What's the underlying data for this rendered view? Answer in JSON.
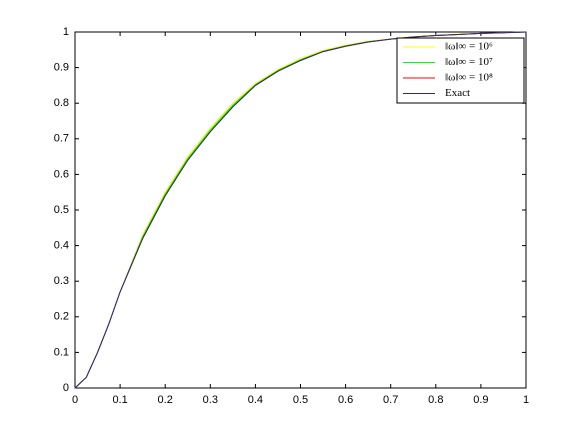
{
  "chart_data": {
    "type": "line",
    "x": [
      0,
      0.025,
      0.05,
      0.075,
      0.1,
      0.15,
      0.2,
      0.25,
      0.3,
      0.35,
      0.4,
      0.45,
      0.5,
      0.55,
      0.6,
      0.65,
      0.7,
      0.75,
      0.8,
      0.85,
      0.9,
      0.95,
      1
    ],
    "series": [
      {
        "name": "‖ω‖∞ = 10⁶",
        "color": "#ffff00",
        "values": [
          0,
          0.03,
          0.1,
          0.18,
          0.27,
          0.43,
          0.55,
          0.65,
          0.73,
          0.8,
          0.855,
          0.895,
          0.925,
          0.948,
          0.963,
          0.974,
          0.981,
          0.987,
          0.991,
          0.994,
          0.996,
          0.998,
          1
        ]
      },
      {
        "name": "‖ω‖∞ = 10⁷",
        "color": "#00ff00",
        "values": [
          0,
          0.03,
          0.1,
          0.18,
          0.27,
          0.425,
          0.545,
          0.645,
          0.725,
          0.795,
          0.852,
          0.892,
          0.922,
          0.946,
          0.961,
          0.973,
          0.98,
          0.986,
          0.99,
          0.993,
          0.996,
          0.998,
          1
        ]
      },
      {
        "name": "‖ω‖∞ = 10⁸",
        "color": "#ff0000",
        "values": [
          0,
          0.03,
          0.1,
          0.18,
          0.27,
          0.42,
          0.54,
          0.64,
          0.72,
          0.79,
          0.85,
          0.89,
          0.92,
          0.945,
          0.96,
          0.972,
          0.98,
          0.986,
          0.99,
          0.993,
          0.996,
          0.998,
          1
        ]
      },
      {
        "name": "Exact",
        "color": "#2a2a8c",
        "values": [
          0,
          0.03,
          0.1,
          0.18,
          0.27,
          0.42,
          0.54,
          0.64,
          0.72,
          0.79,
          0.85,
          0.89,
          0.92,
          0.945,
          0.96,
          0.972,
          0.98,
          0.986,
          0.99,
          0.993,
          0.996,
          0.998,
          1
        ]
      }
    ],
    "xlim": [
      0,
      1
    ],
    "xticks": [
      0,
      0.1,
      0.2,
      0.3,
      0.4,
      0.5,
      0.6,
      0.7,
      0.8,
      0.9,
      1
    ],
    "ylim": [
      0,
      1
    ],
    "yticks": [
      0,
      0.1,
      0.2,
      0.3,
      0.4,
      0.5,
      0.6,
      0.7,
      0.8,
      0.9,
      1
    ],
    "legend": "upper right"
  }
}
